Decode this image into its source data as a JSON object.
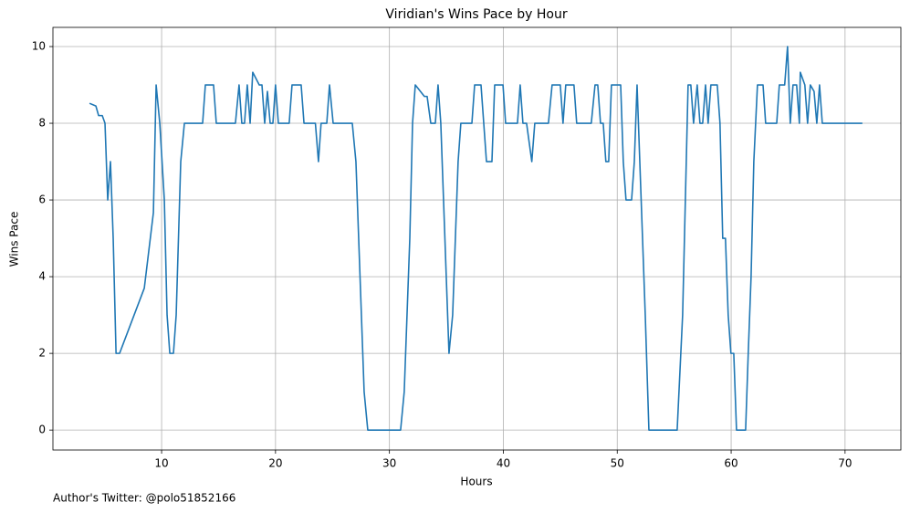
{
  "chart_data": {
    "type": "line",
    "title": "Viridian's Wins Pace by Hour",
    "x_label": "Hours",
    "y_label": "Wins Pace",
    "footnote": "Author's Twitter: @polo51852166",
    "xlim": [
      0.46,
      74.9
    ],
    "ylim": [
      -0.52,
      10.5
    ],
    "xticks": [
      10,
      20,
      30,
      40,
      50,
      60,
      70
    ],
    "yticks": [
      0,
      2,
      4,
      6,
      8,
      10
    ],
    "grid": true,
    "series": [
      {
        "name": "Wins Pace",
        "color": "#1f77b4",
        "x": [
          3.67,
          4.23,
          4.47,
          4.79,
          5.03,
          5.27,
          5.51,
          5.75,
          6.0,
          6.31,
          8.48,
          9.28,
          9.52,
          9.84,
          10.24,
          10.48,
          10.72,
          11.04,
          11.28,
          11.68,
          12.0,
          13.6,
          13.84,
          14.56,
          14.8,
          16.48,
          16.8,
          17.04,
          17.28,
          17.52,
          17.77,
          18.0,
          18.57,
          18.81,
          19.05,
          19.29,
          19.53,
          19.77,
          20.0,
          20.25,
          21.2,
          21.45,
          22.25,
          22.5,
          23.5,
          23.77,
          24.0,
          24.5,
          24.74,
          25.06,
          26.74,
          27.06,
          27.54,
          27.78,
          28.1,
          30.98,
          31.3,
          31.79,
          32.03,
          32.27,
          33.07,
          33.31,
          33.63,
          34.03,
          34.27,
          34.51,
          35.23,
          35.55,
          35.79,
          36.03,
          36.27,
          37.24,
          37.48,
          38.04,
          38.28,
          38.52,
          39.0,
          39.24,
          39.97,
          40.2,
          41.24,
          41.48,
          41.72,
          42.04,
          42.5,
          42.76,
          43.96,
          44.28,
          45.0,
          45.24,
          45.48,
          46.2,
          46.44,
          47.72,
          48.05,
          48.29,
          48.53,
          48.77,
          49.0,
          49.25,
          49.49,
          50.3,
          50.53,
          50.77,
          51.26,
          51.5,
          51.74,
          52.22,
          52.46,
          52.78,
          55.26,
          55.74,
          55.98,
          56.22,
          56.46,
          56.7,
          57.02,
          57.26,
          57.5,
          57.75,
          57.98,
          58.22,
          58.78,
          59.02,
          59.26,
          59.5,
          59.74,
          59.98,
          60.23,
          60.47,
          61.27,
          61.5,
          61.75,
          61.99,
          62.31,
          62.8,
          63.03,
          64.0,
          64.23,
          64.7,
          64.95,
          65.19,
          65.43,
          65.75,
          65.99,
          66.07,
          66.47,
          66.71,
          66.95,
          67.28,
          67.52,
          67.76,
          68.0,
          71.52
        ],
        "values": [
          8.52,
          8.45,
          8.2,
          8.2,
          8.0,
          6.0,
          7.0,
          5.0,
          2.0,
          2.0,
          3.7,
          5.67,
          9.0,
          8.0,
          6.0,
          3.0,
          2.0,
          2.0,
          3.0,
          7.0,
          8.0,
          8.0,
          9.0,
          9.0,
          8.0,
          8.0,
          9.0,
          8.0,
          8.0,
          9.0,
          8.0,
          9.33,
          9.0,
          9.0,
          8.0,
          8.83,
          8.0,
          8.0,
          9.0,
          8.0,
          8.0,
          9.0,
          9.0,
          8.0,
          8.0,
          7.0,
          8.0,
          8.0,
          9.0,
          8.0,
          8.0,
          7.0,
          3.0,
          1.0,
          0,
          0,
          1.0,
          5.0,
          8.0,
          9.0,
          8.7,
          8.7,
          8.0,
          8.0,
          9.0,
          8.0,
          2.0,
          3.0,
          5.0,
          7.0,
          8.0,
          8.0,
          9.0,
          9.0,
          8.0,
          7.0,
          7.0,
          9.0,
          9.0,
          8.0,
          8.0,
          9.0,
          8.0,
          8.0,
          7.0,
          8.0,
          8.0,
          9.0,
          9.0,
          8.0,
          9.0,
          9.0,
          8.0,
          8.0,
          9.0,
          9.0,
          8.0,
          8.0,
          7.0,
          7.0,
          9.0,
          9.0,
          7.0,
          6.0,
          6.0,
          7.0,
          9.0,
          5.0,
          3.0,
          0,
          0,
          3.0,
          6.0,
          9.0,
          9.0,
          8.0,
          9.0,
          8.0,
          8.0,
          9.0,
          8.0,
          9.0,
          9.0,
          8.0,
          5.0,
          5.0,
          3.0,
          2.0,
          2.0,
          0,
          0,
          2.0,
          4.0,
          7.0,
          9.0,
          9.0,
          8.0,
          8.0,
          9.0,
          9.0,
          10.0,
          8.0,
          9.0,
          9.0,
          8.0,
          9.33,
          9.0,
          8.0,
          9.0,
          8.83,
          8.0,
          9.0,
          8.0,
          8.0
        ]
      }
    ]
  }
}
